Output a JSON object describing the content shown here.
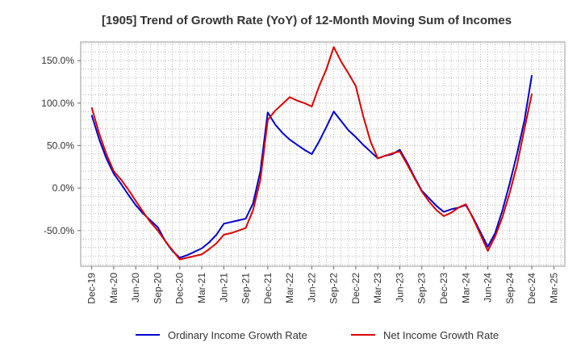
{
  "chart_data": {
    "type": "line",
    "title": "[1905]  Trend of Growth Rate (YoY) of 12-Month Moving Sum of Incomes",
    "xlabel": "",
    "ylabel": "",
    "ylim": [
      -92,
      172
    ],
    "y_ticks": [
      150,
      100,
      50,
      0,
      -50
    ],
    "y_tick_labels": [
      "150.0%",
      "100.0%",
      "50.0%",
      "0.0%",
      "-50.0%"
    ],
    "x_tick_labels": [
      "Dec-19",
      "Mar-20",
      "Jun-20",
      "Sep-20",
      "Dec-20",
      "Mar-21",
      "Jun-21",
      "Sep-21",
      "Dec-21",
      "Mar-22",
      "Jun-22",
      "Sep-22",
      "Dec-22",
      "Mar-23",
      "Jun-23",
      "Sep-23",
      "Dec-23",
      "Mar-24",
      "Jun-24",
      "Sep-24",
      "Dec-24",
      "Mar-25"
    ],
    "x": [
      "Dec-19",
      "Jan-20",
      "Feb-20",
      "Mar-20",
      "Apr-20",
      "May-20",
      "Jun-20",
      "Jul-20",
      "Aug-20",
      "Sep-20",
      "Oct-20",
      "Nov-20",
      "Dec-20",
      "Jan-21",
      "Feb-21",
      "Mar-21",
      "Apr-21",
      "May-21",
      "Jun-21",
      "Jul-21",
      "Aug-21",
      "Sep-21",
      "Oct-21",
      "Nov-21",
      "Dec-21",
      "Jan-22",
      "Feb-22",
      "Mar-22",
      "Apr-22",
      "May-22",
      "Jun-22",
      "Jul-22",
      "Aug-22",
      "Sep-22",
      "Oct-22",
      "Nov-22",
      "Dec-22",
      "Jan-23",
      "Feb-23",
      "Mar-23",
      "Apr-23",
      "May-23",
      "Jun-23",
      "Jul-23",
      "Aug-23",
      "Sep-23",
      "Oct-23",
      "Nov-23",
      "Dec-23",
      "Jan-24",
      "Feb-24",
      "Mar-24",
      "Apr-24",
      "May-24",
      "Jun-24",
      "Jul-24",
      "Aug-24",
      "Sep-24",
      "Oct-24",
      "Nov-24",
      "Dec-24"
    ],
    "grid": true,
    "legend_position": "bottom",
    "series": [
      {
        "name": "Ordinary Income Growth Rate",
        "color": "#0000cc",
        "values": [
          86,
          58,
          35,
          17,
          5,
          -8,
          -20,
          -30,
          -38,
          -46,
          -62,
          -74,
          -82,
          -79,
          -75,
          -71,
          -64,
          -55,
          -42,
          -40,
          -38,
          -36,
          -18,
          20,
          89,
          75,
          65,
          57,
          51,
          45,
          40,
          55,
          72,
          90,
          79,
          68,
          60,
          51,
          43,
          35,
          38,
          40,
          45,
          30,
          13,
          -3,
          -12,
          -21,
          -28,
          -25,
          -23,
          -20,
          -35,
          -52,
          -69,
          -53,
          -26,
          6,
          41,
          80,
          133
        ]
      },
      {
        "name": "Net Income Growth Rate",
        "color": "#dd0000",
        "values": [
          95,
          65,
          40,
          20,
          10,
          -2,
          -15,
          -28,
          -40,
          -50,
          -62,
          -73,
          -84,
          -82,
          -80,
          -78,
          -72,
          -65,
          -55,
          -53,
          -50,
          -47,
          -26,
          10,
          80,
          91,
          99,
          107,
          103,
          100,
          96,
          120,
          140,
          166,
          149,
          135,
          120,
          85,
          55,
          35,
          38,
          41,
          43,
          28,
          12,
          -4,
          -16,
          -26,
          -33,
          -29,
          -23,
          -19,
          -36,
          -55,
          -74,
          -57,
          -34,
          -5,
          28,
          70,
          111
        ]
      }
    ]
  }
}
